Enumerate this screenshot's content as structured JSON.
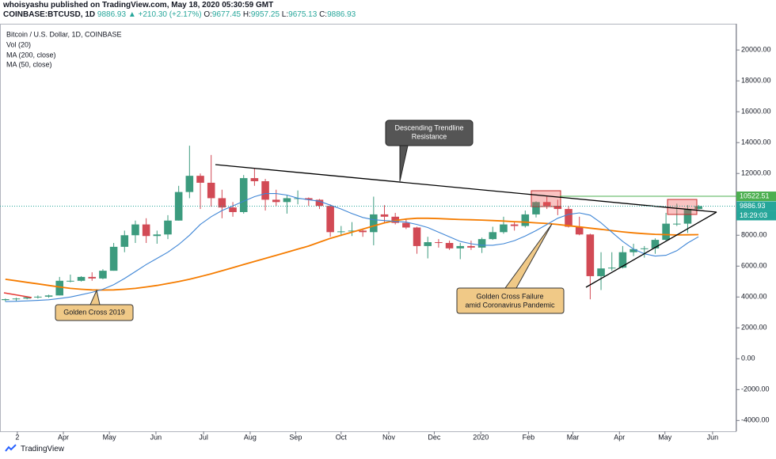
{
  "header": {
    "publisher": "whoisyashu published on TradingView.com, May 18, 2020 05:30:59 GMT",
    "symbol": "COINBASE:BTCUSD, 1D",
    "price": "9886.93",
    "change": "▲ +210.30 (+2.17%)",
    "ohlc": [
      {
        "label": "O:",
        "value": "9677.45"
      },
      {
        "label": "H:",
        "value": "9957.25"
      },
      {
        "label": "L:",
        "value": "9675.13"
      },
      {
        "label": "C:",
        "value": "9886.93"
      }
    ]
  },
  "chart_data": {
    "type": "candlestick",
    "legend_title": "Bitcoin / U.S. Dollar, 1D, COINBASE",
    "volume_label": "Vol (20)",
    "up_color": "#3c9b7e",
    "down_color": "#d24a55",
    "open": [
      3800,
      3860,
      3900,
      3980,
      4020,
      4100,
      5050,
      5050,
      5300,
      5200,
      5700,
      7250,
      8000,
      8700,
      7950,
      8050,
      8950,
      10800,
      11850,
      11400,
      10400,
      9800,
      9500,
      11700,
      11500,
      10300,
      10150,
      10400,
      10400,
      10300,
      9900,
      8200,
      8250,
      8300,
      8200,
      9350,
      9200,
      8800,
      8500,
      7300,
      7550,
      7500,
      7150,
      7300,
      7200,
      7750,
      8200,
      8700,
      8600,
      9350,
      10150,
      9900,
      9700,
      8550,
      8050,
      5350,
      5850,
      5900,
      6900,
      7100,
      7150,
      7700,
      8750,
      8750,
      9700
    ],
    "high": [
      3900,
      3950,
      4000,
      4100,
      4150,
      5300,
      5450,
      5350,
      5600,
      5800,
      7500,
      8300,
      8950,
      9100,
      8300,
      9300,
      11200,
      13800,
      12000,
      13200,
      10950,
      10150,
      11900,
      12300,
      11650,
      10950,
      10600,
      10900,
      10450,
      10350,
      10000,
      8600,
      8850,
      8400,
      10500,
      9950,
      9450,
      9050,
      8550,
      7900,
      7750,
      7650,
      7500,
      7650,
      7850,
      8550,
      9200,
      8900,
      9600,
      10200,
      10500,
      10300,
      9900,
      9200,
      8100,
      6900,
      6900,
      7300,
      7450,
      7300,
      7800,
      9450,
      10050,
      9950,
      9957
    ],
    "low": [
      3700,
      3720,
      3850,
      3900,
      3950,
      4100,
      4950,
      5000,
      5050,
      5150,
      5700,
      6900,
      7500,
      7500,
      7450,
      7750,
      8950,
      10400,
      9700,
      9850,
      9100,
      9200,
      9400,
      11200,
      9600,
      9900,
      9400,
      10000,
      9900,
      9700,
      7900,
      7950,
      7950,
      7900,
      7350,
      8800,
      8700,
      8400,
      6800,
      6500,
      7200,
      7050,
      6450,
      7050,
      6850,
      7700,
      8100,
      8300,
      8500,
      9150,
      9700,
      9300,
      8500,
      8000,
      3850,
      4450,
      5700,
      5850,
      6650,
      6550,
      6800,
      7650,
      8600,
      8150,
      9675
    ],
    "close": [
      3860,
      3900,
      3980,
      4020,
      4100,
      5050,
      5050,
      5300,
      5200,
      5700,
      7250,
      8000,
      8700,
      7950,
      8050,
      8950,
      10800,
      11850,
      11400,
      10400,
      9800,
      9500,
      11700,
      11500,
      10300,
      10150,
      10400,
      10400,
      10300,
      9900,
      8200,
      8250,
      8300,
      8200,
      9350,
      9200,
      8800,
      8500,
      7300,
      7550,
      7500,
      7150,
      7300,
      7200,
      7750,
      8200,
      8700,
      8600,
      9350,
      10150,
      9900,
      9700,
      8550,
      8050,
      5350,
      5850,
      5900,
      6900,
      7100,
      7150,
      7700,
      8750,
      8750,
      9700,
      9887
    ],
    "series": [
      {
        "name": "MA (200, close)",
        "color": "#f57c00",
        "values": [
          5150,
          5050,
          4950,
          4850,
          4750,
          4650,
          4560,
          4500,
          4460,
          4450,
          4460,
          4500,
          4560,
          4650,
          4750,
          4870,
          5000,
          5150,
          5320,
          5500,
          5700,
          5900,
          6100,
          6300,
          6500,
          6700,
          6900,
          7100,
          7300,
          7550,
          7800,
          8000,
          8200,
          8400,
          8600,
          8800,
          8950,
          9050,
          9100,
          9100,
          9080,
          9050,
          9020,
          9000,
          8980,
          8950,
          8920,
          8880,
          8850,
          8800,
          8760,
          8700,
          8620,
          8540,
          8460,
          8380,
          8300,
          8220,
          8150,
          8100,
          8060,
          8040,
          8020,
          8030,
          8040
        ]
      },
      {
        "name": "MA (50, close)",
        "color": "#3f86d6",
        "values": [
          3700,
          3720,
          3750,
          3780,
          3820,
          3900,
          4000,
          4150,
          4300,
          4500,
          4800,
          5200,
          5650,
          6100,
          6500,
          6900,
          7400,
          8000,
          8700,
          9200,
          9600,
          9900,
          10200,
          10500,
          10700,
          10700,
          10600,
          10400,
          10300,
          10200,
          9950,
          9700,
          9400,
          9150,
          9000,
          8950,
          8900,
          8850,
          8700,
          8500,
          8200,
          7900,
          7600,
          7450,
          7350,
          7350,
          7450,
          7650,
          7950,
          8300,
          8700,
          9100,
          9350,
          9450,
          9300,
          8800,
          8200,
          7600,
          7100,
          6800,
          6650,
          6700,
          7000,
          7500,
          7900
        ]
      }
    ],
    "xlim": [
      -0.5,
      67.5
    ],
    "xticks": [
      {
        "value": 1.1,
        "label": "2"
      },
      {
        "value": 5.35,
        "label": "Apr"
      },
      {
        "value": 9.6,
        "label": "May"
      },
      {
        "value": 13.9,
        "label": "Jun"
      },
      {
        "value": 18.3,
        "label": "Jul"
      },
      {
        "value": 22.6,
        "label": "Aug"
      },
      {
        "value": 26.8,
        "label": "Sep"
      },
      {
        "value": 31.0,
        "label": "Oct"
      },
      {
        "value": 35.4,
        "label": "Nov"
      },
      {
        "value": 39.6,
        "label": "Dec"
      },
      {
        "value": 43.9,
        "label": "2020"
      },
      {
        "value": 48.3,
        "label": "Feb"
      },
      {
        "value": 52.4,
        "label": "Mar"
      },
      {
        "value": 56.7,
        "label": "Apr"
      },
      {
        "value": 60.9,
        "label": "May"
      },
      {
        "value": 65.3,
        "label": "Jun"
      }
    ],
    "ylim": [
      -4700,
      21700
    ],
    "yticks": [
      {
        "value": -4000,
        "label": "-4000.00"
      },
      {
        "value": -2000,
        "label": "-2000.00"
      },
      {
        "value": 0,
        "label": "0.00"
      },
      {
        "value": 2000,
        "label": "2000.00"
      },
      {
        "value": 4000,
        "label": "4000.00"
      },
      {
        "value": 6000,
        "label": "6000.00"
      },
      {
        "value": 8000,
        "label": "8000.00"
      },
      {
        "value": 12000,
        "label": "12000.00"
      },
      {
        "value": 14000,
        "label": "14000.00"
      },
      {
        "value": 16000,
        "label": "16000.00"
      },
      {
        "value": 18000,
        "label": "18000.00"
      },
      {
        "value": 20000,
        "label": "20000.00"
      }
    ],
    "price_levels": [
      10522.51,
      9886.93
    ],
    "countdown": "18:29:03",
    "annotations": [
      {
        "lines": [
          "Descending Trendline",
          "Resistance"
        ]
      },
      {
        "lines": [
          "Golden Cross 2019"
        ]
      },
      {
        "lines": [
          "Golden Cross Failure",
          "amid Coronavirus Pandemic"
        ]
      }
    ]
  },
  "footer": {
    "brand": "TradingView"
  }
}
